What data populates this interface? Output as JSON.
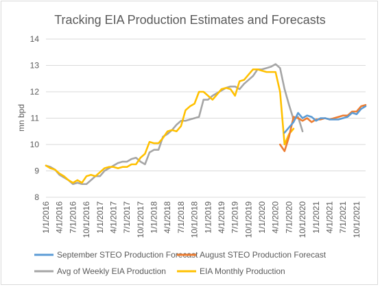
{
  "chart_data": {
    "type": "line",
    "title": "Tracking EIA Production Estimates and Forecasts",
    "ylabel": "mn bpd",
    "xlabel": "",
    "ylim": [
      8,
      14
    ],
    "yticks": [
      8,
      9,
      10,
      11,
      12,
      13,
      14
    ],
    "grid": "horizontal",
    "legend_position": "bottom",
    "xtick_labels": [
      "1/1/2016",
      "4/1/2016",
      "7/1/2016",
      "10/1/2016",
      "1/1/2017",
      "4/1/2017",
      "7/1/2017",
      "10/1/2017",
      "1/1/2018",
      "4/1/2018",
      "7/1/2018",
      "10/1/2018",
      "1/1/2019",
      "4/1/2019",
      "7/1/2019",
      "10/1/2019",
      "1/1/2020",
      "4/1/2020",
      "7/1/2020",
      "10/1/2020",
      "1/1/2021",
      "4/1/2021",
      "7/1/2021",
      "10/1/2021"
    ],
    "x_start": "2016-01",
    "x_end": "2021-12",
    "series": [
      {
        "name": "September STEO Production Forecast",
        "color": "#5b9bd5",
        "start": "2020-06",
        "values": [
          10.45,
          10.65,
          10.85,
          11.2,
          11.0,
          11.1,
          11.05,
          10.9,
          11.0,
          11.0,
          10.95,
          10.95,
          10.95,
          11.0,
          11.05,
          11.2,
          11.15,
          11.35,
          11.45
        ]
      },
      {
        "name": "August STEO Production Forecast",
        "color": "#ed7d31",
        "start": "2020-05",
        "values": [
          10.0,
          9.75,
          10.3,
          11.05,
          11.0,
          10.9,
          11.0,
          10.85,
          10.95,
          10.95,
          11.0,
          10.95,
          11.0,
          11.05,
          11.1,
          11.1,
          11.25,
          11.25,
          11.45,
          11.5
        ]
      },
      {
        "name": "Avg of Weekly EIA Production",
        "color": "#a5a5a5",
        "start": "2016-01",
        "values": [
          9.2,
          9.15,
          9.05,
          8.85,
          8.75,
          8.65,
          8.5,
          8.55,
          8.5,
          8.5,
          8.65,
          8.8,
          8.8,
          9.0,
          9.1,
          9.2,
          9.3,
          9.35,
          9.35,
          9.45,
          9.5,
          9.35,
          9.25,
          9.7,
          9.8,
          9.8,
          10.3,
          10.4,
          10.55,
          10.75,
          10.9,
          10.9,
          10.95,
          11.0,
          11.05,
          11.7,
          11.7,
          11.85,
          11.95,
          12.05,
          12.15,
          12.2,
          12.2,
          12.1,
          12.3,
          12.45,
          12.6,
          12.85,
          12.85,
          12.9,
          12.95,
          13.05,
          12.9,
          12.1,
          11.5,
          10.95,
          11.05,
          10.5
        ]
      },
      {
        "name": "EIA Monthly Production",
        "color": "#ffc000",
        "start": "2016-01",
        "values": [
          9.2,
          9.1,
          9.05,
          8.9,
          8.8,
          8.65,
          8.55,
          8.65,
          8.55,
          8.8,
          8.85,
          8.8,
          8.95,
          9.1,
          9.15,
          9.15,
          9.1,
          9.15,
          9.15,
          9.25,
          9.25,
          9.5,
          9.65,
          10.1,
          10.05,
          10.05,
          10.25,
          10.5,
          10.55,
          10.5,
          10.7,
          11.3,
          11.45,
          11.55,
          12.0,
          12.0,
          11.85,
          11.7,
          11.9,
          12.1,
          12.15,
          12.1,
          11.85,
          12.4,
          12.45,
          12.65,
          12.85,
          12.85,
          12.8,
          12.75,
          12.75,
          12.75,
          12.0,
          10.0,
          10.4,
          10.6
        ]
      }
    ]
  }
}
